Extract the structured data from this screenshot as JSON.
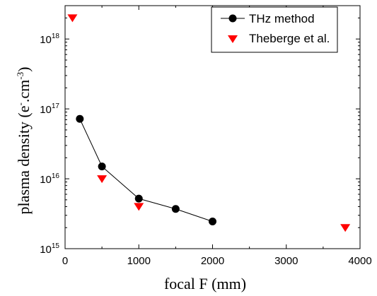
{
  "chart_data": {
    "type": "scatter",
    "xlabel": "focal F (mm)",
    "ylabel": {
      "prefix": "plasma density (e",
      "sup1": "-",
      "middle": ".cm",
      "sup2": "-3",
      "suffix": ")"
    },
    "xlim": [
      0,
      4000
    ],
    "ylim": [
      1000000000000000.0,
      3e+18
    ],
    "yscale": "log",
    "x_ticks": [
      "0",
      "1000",
      "2000",
      "3000",
      "4000"
    ],
    "y_ticks": [
      {
        "base": "10",
        "exp": "15"
      },
      {
        "base": "10",
        "exp": "16"
      },
      {
        "base": "10",
        "exp": "17"
      },
      {
        "base": "10",
        "exp": "18"
      }
    ],
    "legend_position": "top-right",
    "series": [
      {
        "name": "THz method",
        "marker": "circle",
        "line": true,
        "color": "#000000",
        "x": [
          200,
          500,
          1000,
          1500,
          2000
        ],
        "y": [
          7.2e+16,
          1.5e+16,
          5200000000000000.0,
          3700000000000000.0,
          2450000000000000.0
        ]
      },
      {
        "name": "Theberge et al.",
        "marker": "triangle-down",
        "line": false,
        "color": "#ff0000",
        "x": [
          100,
          500,
          1000,
          3800
        ],
        "y": [
          2e+18,
          1e+16,
          4000000000000000.0,
          2000000000000000.0
        ]
      }
    ]
  }
}
